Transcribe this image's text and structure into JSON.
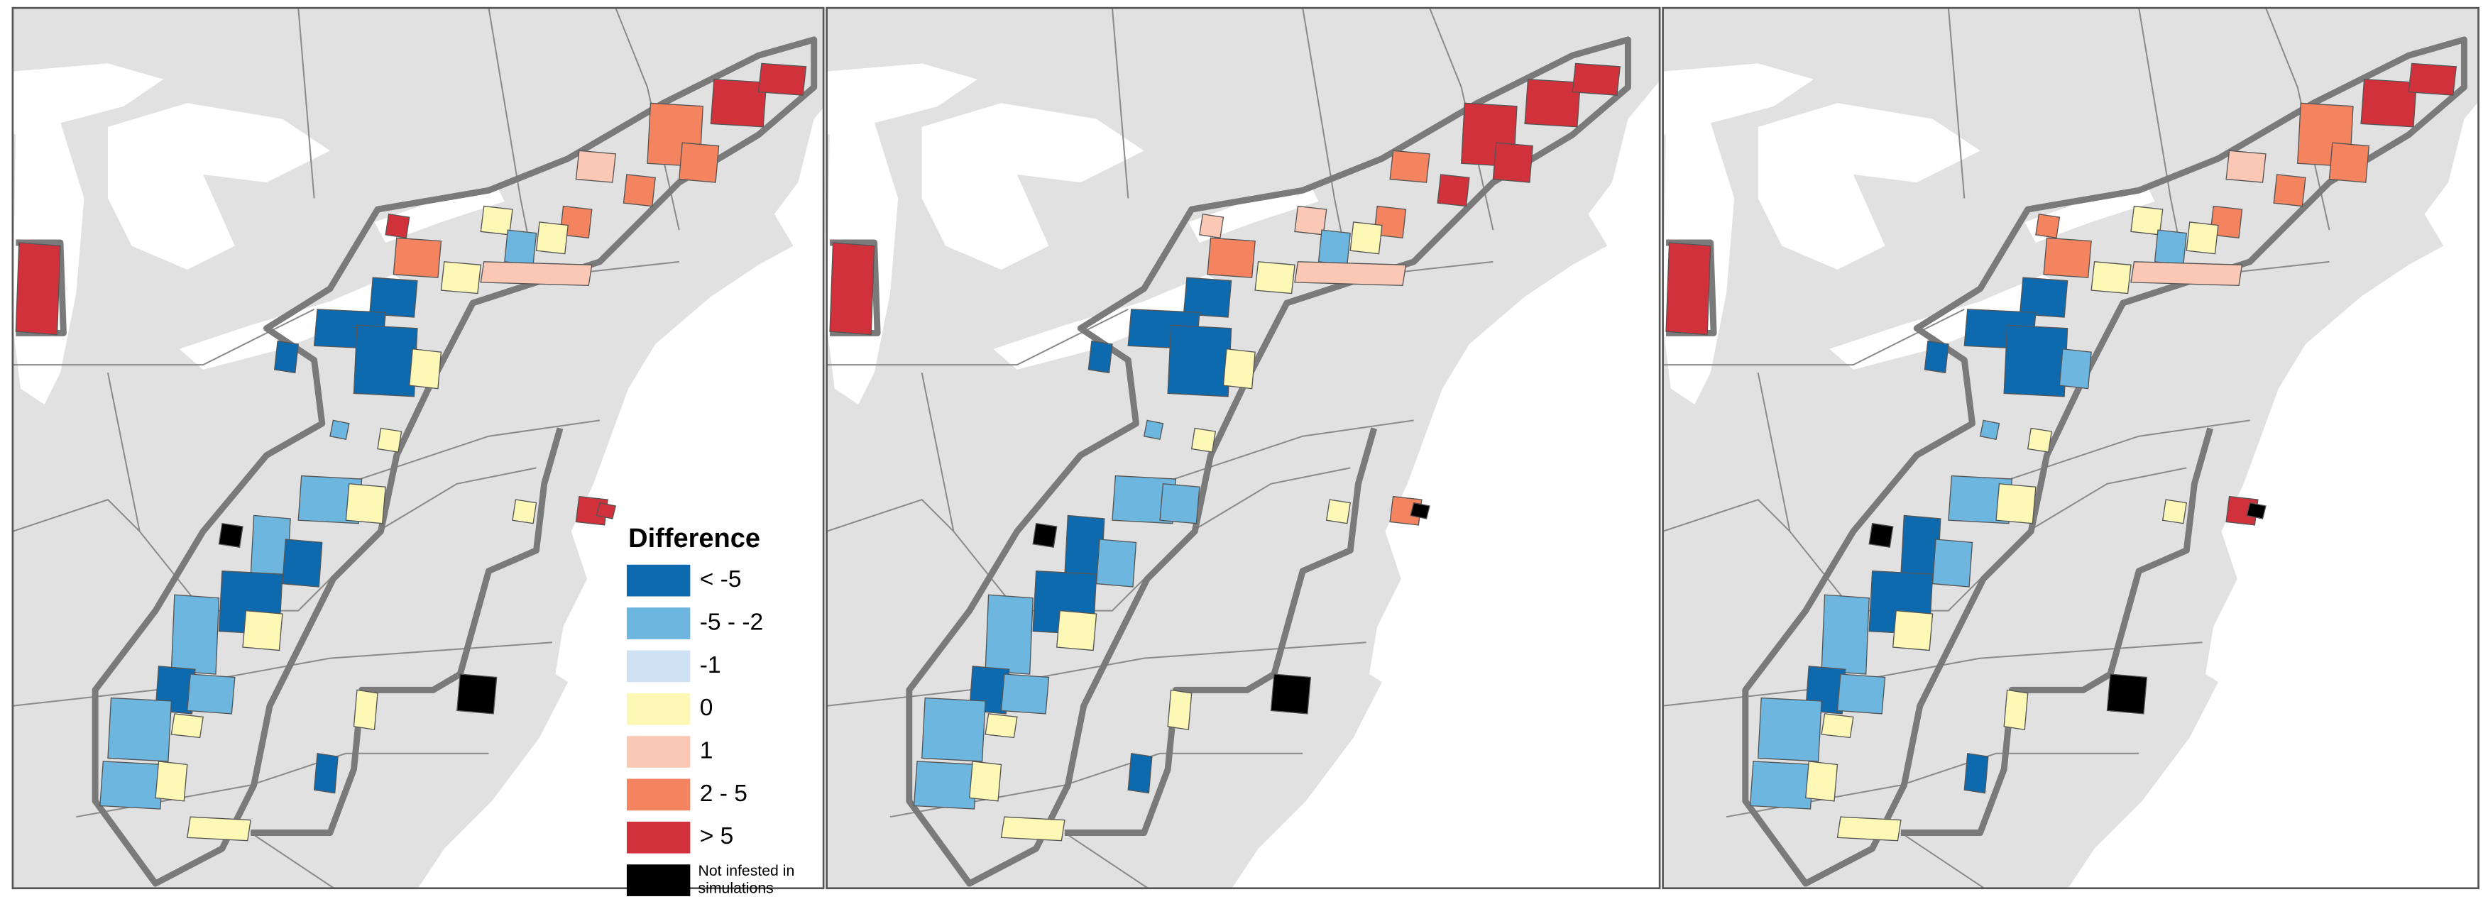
{
  "legend": {
    "title": "Difference",
    "items": [
      {
        "label": "< -5",
        "color": "#0d6aae"
      },
      {
        "label": "-5 - -2",
        "color": "#6cb6df"
      },
      {
        "label": "-1",
        "color": "#cfe2f3"
      },
      {
        "label": "0",
        "color": "#fdf8b6"
      },
      {
        "label": "1",
        "color": "#fbc8b6"
      },
      {
        "label": "2 - 5",
        "color": "#f4845f"
      },
      {
        "label": "> 5",
        "color": "#d0313b"
      },
      {
        "label": "Not infested in simulations",
        "color": "#000000"
      }
    ]
  }
}
